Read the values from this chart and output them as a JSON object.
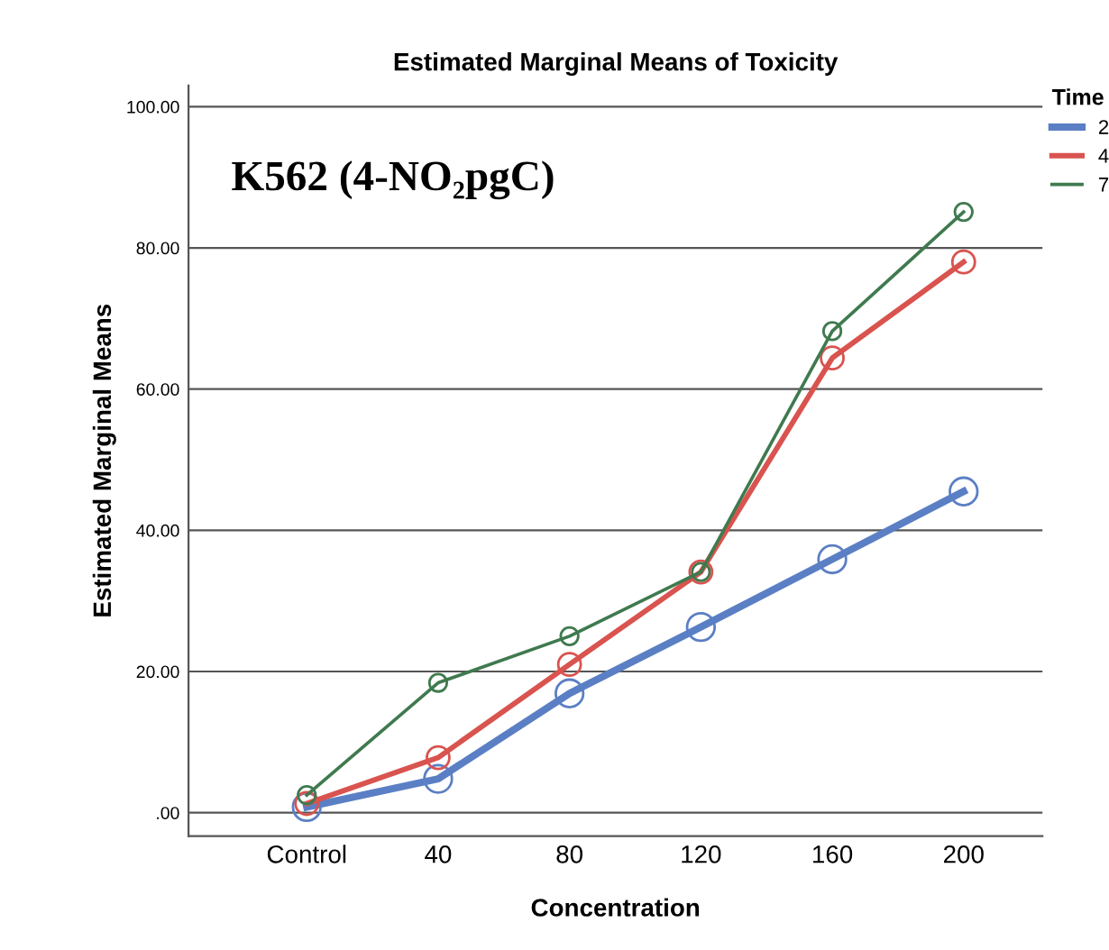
{
  "chart_data": {
    "type": "line",
    "title": "Estimated Marginal Means of Toxicity",
    "xlabel": "Concentration",
    "ylabel": "Estimated Marginal Means",
    "legend_title": "Time",
    "categories": [
      "Control",
      "40",
      "80",
      "120",
      "160",
      "200"
    ],
    "series": [
      {
        "name": "2",
        "color": "#5b7fc4",
        "values": [
          0.8,
          4.8,
          16.9,
          26.3,
          35.9,
          45.5
        ]
      },
      {
        "name": "4",
        "color": "#d9534f",
        "values": [
          1.3,
          7.8,
          21.0,
          34.1,
          64.4,
          78.0
        ]
      },
      {
        "name": "7",
        "color": "#3f7a4f",
        "values": [
          2.5,
          18.4,
          25.0,
          34.1,
          68.2,
          85.1
        ]
      }
    ],
    "annotations": [
      "K562 (4-NO₂pgC)"
    ],
    "ylim": [
      -3.3,
      103
    ],
    "yticks": [
      {
        "value": 0,
        "label": ".00"
      },
      {
        "value": 20,
        "label": "20.00"
      },
      {
        "value": 40,
        "label": "40.00"
      },
      {
        "value": 60,
        "label": "60.00"
      },
      {
        "value": 80,
        "label": "80.00"
      },
      {
        "value": 100,
        "label": "100.00"
      }
    ],
    "grid": "y",
    "legend": "top right",
    "marker": "circle",
    "line_style": "solid"
  }
}
